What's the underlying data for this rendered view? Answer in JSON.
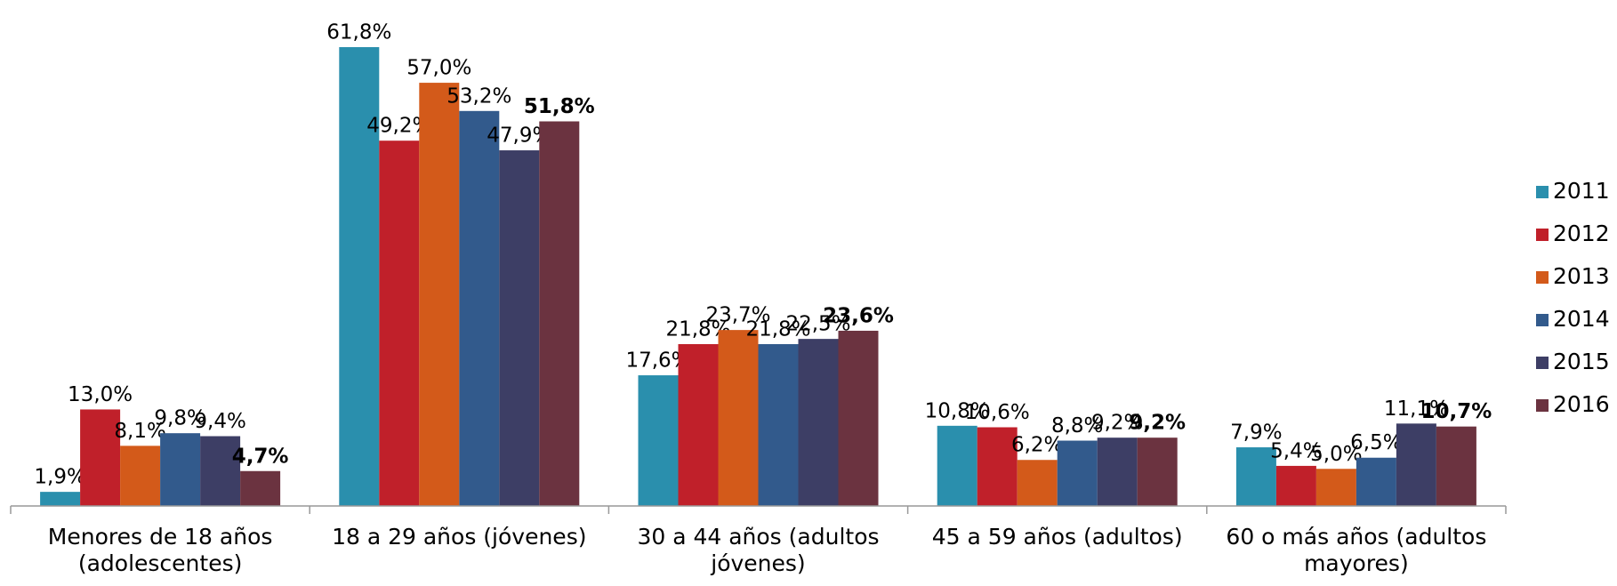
{
  "chart_data": {
    "type": "bar",
    "categories": [
      "Menores de 18 años (adolescentes)",
      "18 a 29 años (jóvenes)",
      "30 a 44 años (adultos jóvenes)",
      "45 a 59 años (adultos)",
      "60 o más años (adultos mayores)"
    ],
    "series": [
      {
        "name": "2011",
        "color": "#2a8fad",
        "values": [
          1.9,
          61.8,
          17.6,
          10.8,
          7.9
        ],
        "value_labels": [
          "1,9%",
          "61,8%",
          "17,6%",
          "10,8%",
          "7,9%"
        ]
      },
      {
        "name": "2012",
        "color": "#c0202a",
        "values": [
          13.0,
          49.2,
          21.8,
          10.6,
          5.4
        ],
        "value_labels": [
          "13,0%",
          "49,2%",
          "21,8%",
          "10,6%",
          "5,4%"
        ]
      },
      {
        "name": "2013",
        "color": "#d35a1a",
        "values": [
          8.1,
          57.0,
          23.7,
          6.2,
          5.0
        ],
        "value_labels": [
          "8,1%",
          "57,0%",
          "23,7%",
          "6,2%",
          "5,0%"
        ]
      },
      {
        "name": "2014",
        "color": "#325a8c",
        "values": [
          9.8,
          53.2,
          21.8,
          8.8,
          6.5
        ],
        "value_labels": [
          "9,8%",
          "53,2%",
          "21,8%",
          "8,8%",
          "6,5%"
        ]
      },
      {
        "name": "2015",
        "color": "#3d3e65",
        "values": [
          9.4,
          47.9,
          22.5,
          9.2,
          11.1
        ],
        "value_labels": [
          "9,4%",
          "47,9%",
          "22,5%",
          "9,2%",
          "11,1%"
        ]
      },
      {
        "name": "2016",
        "color": "#6b3340",
        "values": [
          4.7,
          51.8,
          23.6,
          9.2,
          10.7
        ],
        "value_labels": [
          "4,7%",
          "51,8%",
          "23,6%",
          "9,2%",
          "10,7%"
        ],
        "label_weight": "bold"
      }
    ],
    "legend": "right"
  }
}
